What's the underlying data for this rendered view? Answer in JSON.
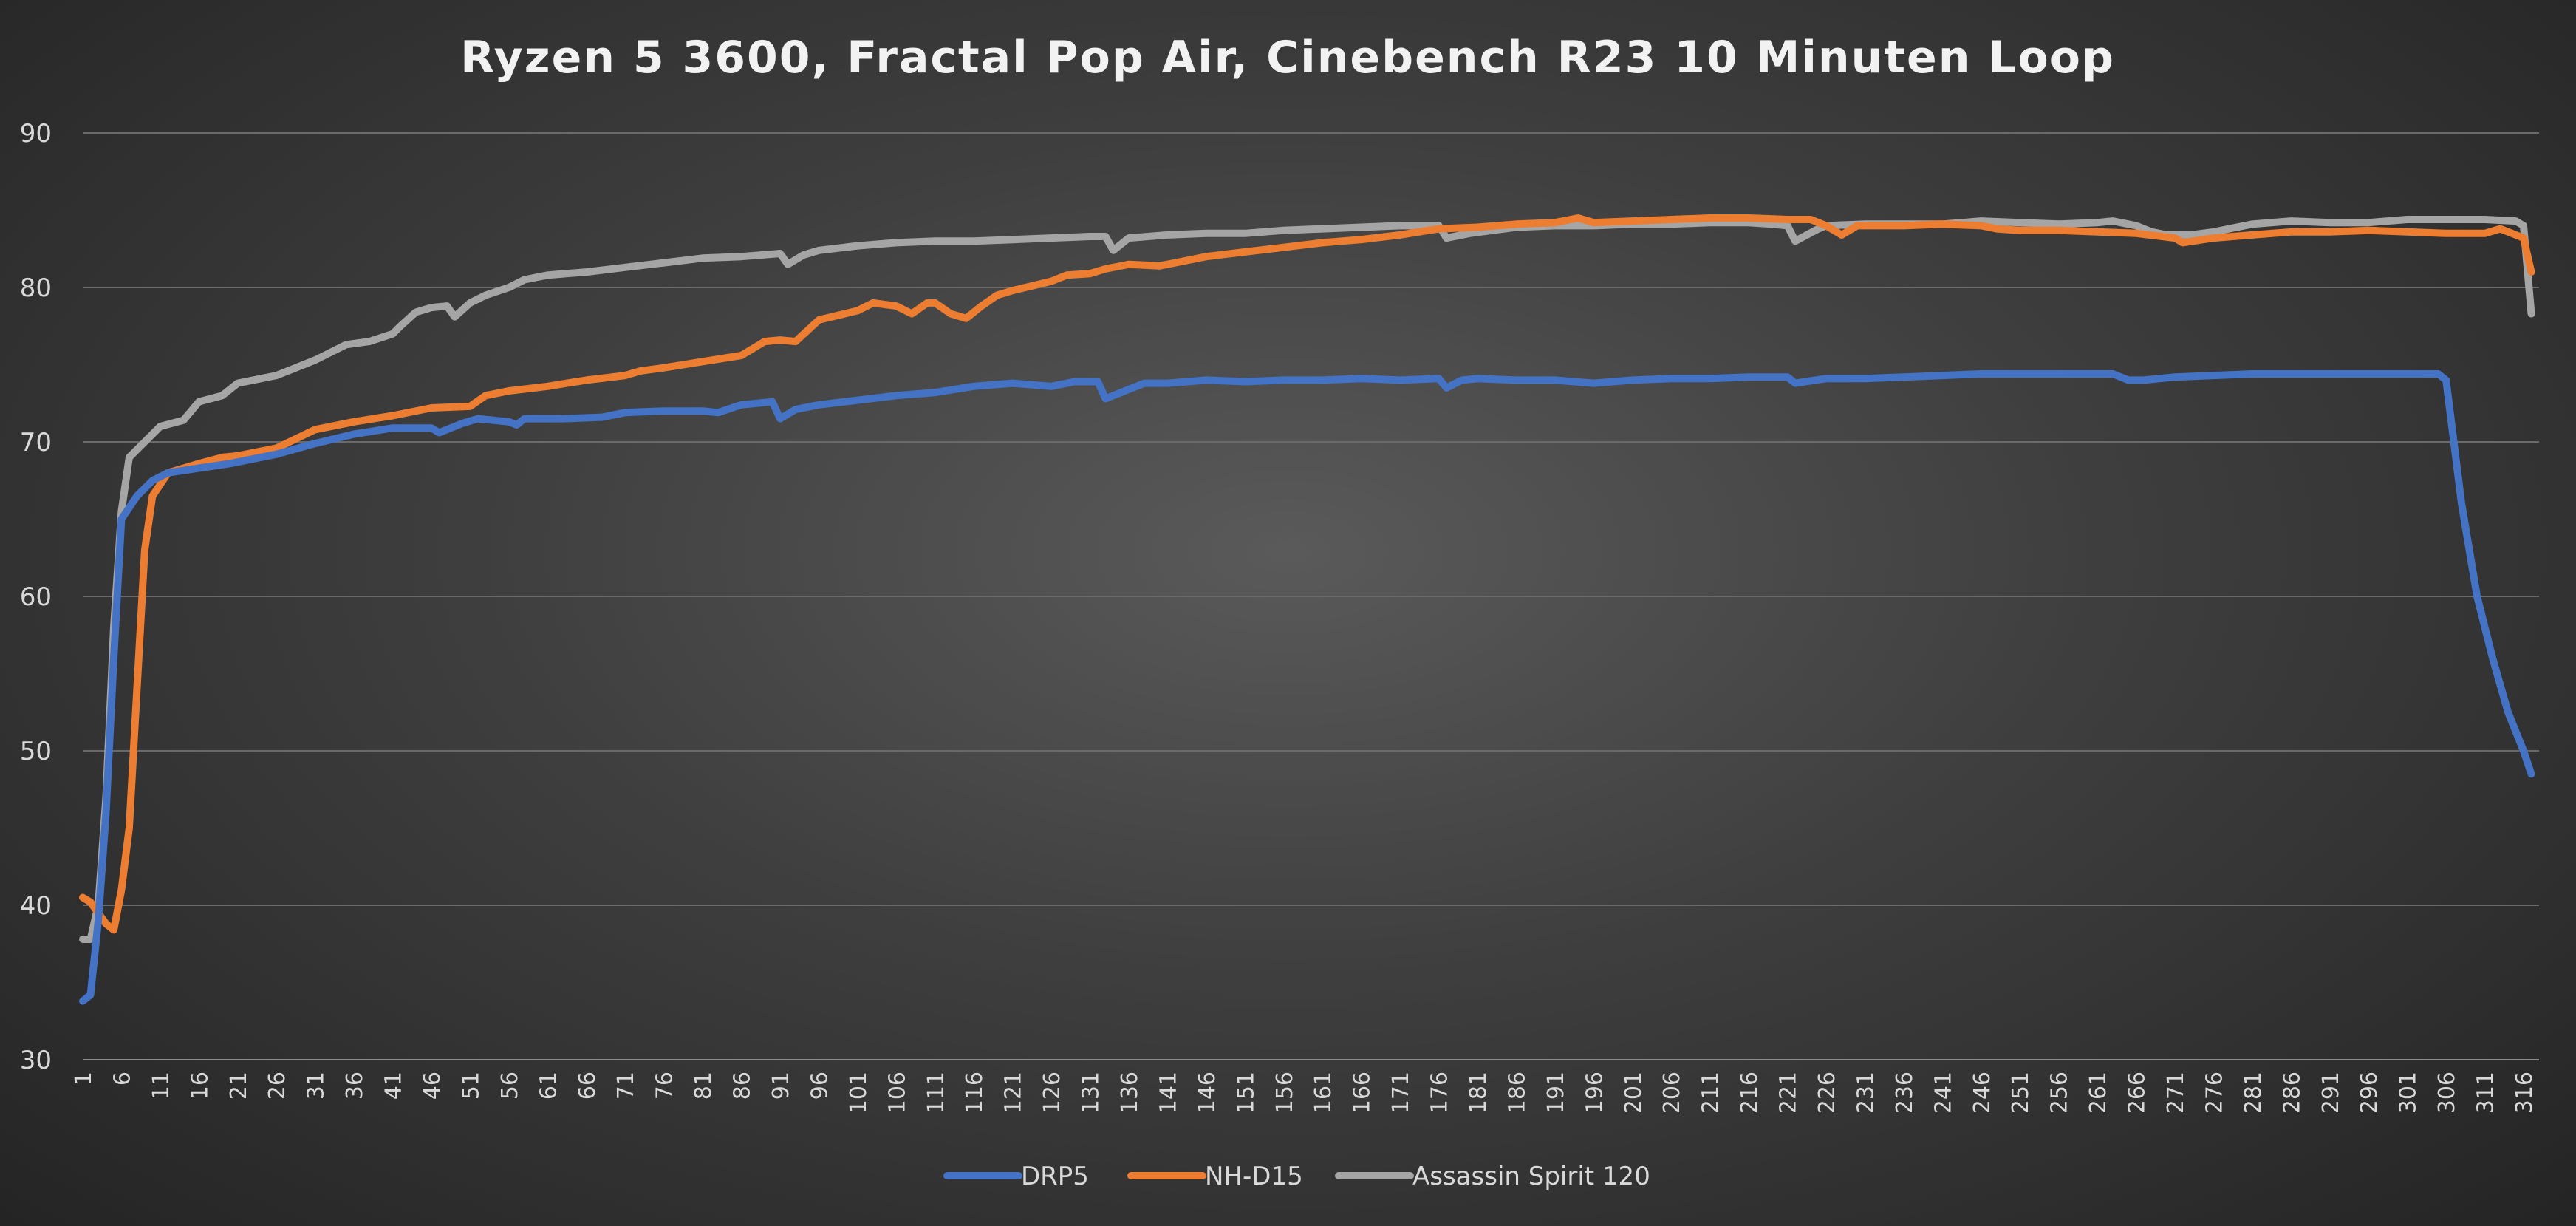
{
  "chart_data": {
    "type": "line",
    "title": "Ryzen 5 3600, Fractal Pop Air, Cinebench R23 10 Minuten Loop",
    "xlabel": "",
    "ylabel": "",
    "ylim": [
      30,
      90
    ],
    "yticks": [
      "30",
      "40",
      "50",
      "60",
      "70",
      "80",
      "90"
    ],
    "x_range": [
      1,
      318
    ],
    "xtick_values": [
      1,
      6,
      11,
      16,
      21,
      26,
      31,
      36,
      41,
      46,
      51,
      56,
      61,
      66,
      71,
      76,
      81,
      86,
      91,
      96,
      101,
      106,
      111,
      116,
      121,
      126,
      131,
      136,
      141,
      146,
      151,
      156,
      161,
      166,
      171,
      176,
      181,
      186,
      191,
      196,
      201,
      206,
      211,
      216,
      221,
      226,
      231,
      236,
      241,
      246,
      251,
      256,
      261,
      266,
      271,
      276,
      281,
      286,
      291,
      296,
      301,
      306,
      311,
      316
    ],
    "grid": true,
    "legend_position": "bottom",
    "series": [
      {
        "name": "DRP5",
        "color": "#4472c4",
        "points": [
          [
            1,
            33.8
          ],
          [
            2,
            34.2
          ],
          [
            3,
            39
          ],
          [
            4,
            46
          ],
          [
            5,
            56
          ],
          [
            6,
            65
          ],
          [
            8,
            66.5
          ],
          [
            10,
            67.5
          ],
          [
            12,
            68
          ],
          [
            16,
            68.3
          ],
          [
            20,
            68.6
          ],
          [
            26,
            69.2
          ],
          [
            31,
            69.9
          ],
          [
            36,
            70.5
          ],
          [
            41,
            70.9
          ],
          [
            46,
            70.9
          ],
          [
            47,
            70.6
          ],
          [
            50,
            71.2
          ],
          [
            52,
            71.5
          ],
          [
            56,
            71.3
          ],
          [
            57,
            71.1
          ],
          [
            58,
            71.5
          ],
          [
            63,
            71.5
          ],
          [
            68,
            71.6
          ],
          [
            71,
            71.9
          ],
          [
            76,
            72
          ],
          [
            81,
            72
          ],
          [
            83,
            71.9
          ],
          [
            86,
            72.4
          ],
          [
            88,
            72.5
          ],
          [
            90,
            72.6
          ],
          [
            91,
            71.5
          ],
          [
            93,
            72.1
          ],
          [
            96,
            72.4
          ],
          [
            101,
            72.7
          ],
          [
            106,
            73
          ],
          [
            111,
            73.2
          ],
          [
            116,
            73.6
          ],
          [
            121,
            73.8
          ],
          [
            126,
            73.6
          ],
          [
            129,
            73.9
          ],
          [
            132,
            73.9
          ],
          [
            133,
            72.8
          ],
          [
            135,
            73.2
          ],
          [
            138,
            73.8
          ],
          [
            141,
            73.8
          ],
          [
            146,
            74
          ],
          [
            151,
            73.9
          ],
          [
            156,
            74
          ],
          [
            161,
            74
          ],
          [
            166,
            74.1
          ],
          [
            171,
            74
          ],
          [
            176,
            74.1
          ],
          [
            177,
            73.5
          ],
          [
            179,
            74
          ],
          [
            181,
            74.1
          ],
          [
            186,
            74
          ],
          [
            191,
            74
          ],
          [
            196,
            73.8
          ],
          [
            201,
            74
          ],
          [
            206,
            74.1
          ],
          [
            211,
            74.1
          ],
          [
            216,
            74.2
          ],
          [
            221,
            74.2
          ],
          [
            222,
            73.8
          ],
          [
            226,
            74.1
          ],
          [
            231,
            74.1
          ],
          [
            236,
            74.2
          ],
          [
            241,
            74.3
          ],
          [
            246,
            74.4
          ],
          [
            251,
            74.4
          ],
          [
            256,
            74.4
          ],
          [
            261,
            74.4
          ],
          [
            263,
            74.4
          ],
          [
            265,
            74
          ],
          [
            267,
            74
          ],
          [
            271,
            74.2
          ],
          [
            276,
            74.3
          ],
          [
            281,
            74.4
          ],
          [
            286,
            74.4
          ],
          [
            291,
            74.4
          ],
          [
            296,
            74.4
          ],
          [
            301,
            74.4
          ],
          [
            305,
            74.4
          ],
          [
            306,
            74
          ],
          [
            307,
            70
          ],
          [
            308,
            66
          ],
          [
            310,
            60
          ],
          [
            312,
            56
          ],
          [
            314,
            52.5
          ],
          [
            316,
            50
          ],
          [
            317,
            48.5
          ]
        ]
      },
      {
        "name": "NH-D15",
        "color": "#ed7d31",
        "points": [
          [
            1,
            40.5
          ],
          [
            2,
            40.2
          ],
          [
            3,
            39.5
          ],
          [
            4,
            38.8
          ],
          [
            5,
            38.4
          ],
          [
            6,
            41
          ],
          [
            7,
            45
          ],
          [
            8,
            54
          ],
          [
            9,
            63
          ],
          [
            10,
            66.5
          ],
          [
            12,
            68
          ],
          [
            14,
            68.3
          ],
          [
            16,
            68.6
          ],
          [
            19,
            69
          ],
          [
            21,
            69.1
          ],
          [
            26,
            69.6
          ],
          [
            31,
            70.8
          ],
          [
            36,
            71.3
          ],
          [
            41,
            71.7
          ],
          [
            46,
            72.2
          ],
          [
            51,
            72.3
          ],
          [
            53,
            73
          ],
          [
            56,
            73.3
          ],
          [
            61,
            73.6
          ],
          [
            66,
            74
          ],
          [
            71,
            74.3
          ],
          [
            73,
            74.6
          ],
          [
            76,
            74.8
          ],
          [
            81,
            75.2
          ],
          [
            86,
            75.6
          ],
          [
            89,
            76.5
          ],
          [
            91,
            76.6
          ],
          [
            93,
            76.5
          ],
          [
            96,
            77.9
          ],
          [
            101,
            78.5
          ],
          [
            103,
            79
          ],
          [
            106,
            78.8
          ],
          [
            108,
            78.3
          ],
          [
            110,
            79
          ],
          [
            111,
            79
          ],
          [
            113,
            78.3
          ],
          [
            115,
            78
          ],
          [
            117,
            78.8
          ],
          [
            119,
            79.5
          ],
          [
            121,
            79.8
          ],
          [
            126,
            80.4
          ],
          [
            128,
            80.8
          ],
          [
            131,
            80.9
          ],
          [
            133,
            81.2
          ],
          [
            136,
            81.5
          ],
          [
            140,
            81.4
          ],
          [
            142,
            81.6
          ],
          [
            146,
            82
          ],
          [
            151,
            82.3
          ],
          [
            156,
            82.6
          ],
          [
            161,
            82.9
          ],
          [
            166,
            83.1
          ],
          [
            171,
            83.4
          ],
          [
            176,
            83.8
          ],
          [
            181,
            83.9
          ],
          [
            186,
            84.1
          ],
          [
            191,
            84.2
          ],
          [
            194,
            84.5
          ],
          [
            196,
            84.2
          ],
          [
            201,
            84.3
          ],
          [
            206,
            84.4
          ],
          [
            211,
            84.5
          ],
          [
            216,
            84.5
          ],
          [
            221,
            84.4
          ],
          [
            224,
            84.4
          ],
          [
            226,
            84
          ],
          [
            228,
            83.4
          ],
          [
            230,
            84
          ],
          [
            236,
            84
          ],
          [
            241,
            84.1
          ],
          [
            246,
            84
          ],
          [
            248,
            83.8
          ],
          [
            251,
            83.7
          ],
          [
            256,
            83.7
          ],
          [
            261,
            83.6
          ],
          [
            266,
            83.5
          ],
          [
            271,
            83.2
          ],
          [
            272,
            82.9
          ],
          [
            276,
            83.2
          ],
          [
            281,
            83.4
          ],
          [
            286,
            83.6
          ],
          [
            291,
            83.6
          ],
          [
            296,
            83.7
          ],
          [
            301,
            83.6
          ],
          [
            306,
            83.5
          ],
          [
            311,
            83.5
          ],
          [
            313,
            83.8
          ],
          [
            315,
            83.4
          ],
          [
            316,
            83.2
          ],
          [
            317,
            81
          ]
        ]
      },
      {
        "name": "Assassin Spirit 120",
        "color": "#a5a5a5",
        "points": [
          [
            1,
            37.8
          ],
          [
            2,
            37.8
          ],
          [
            3,
            40
          ],
          [
            4,
            47
          ],
          [
            5,
            58
          ],
          [
            6,
            65.5
          ],
          [
            7,
            69
          ],
          [
            9,
            70
          ],
          [
            11,
            71
          ],
          [
            14,
            71.4
          ],
          [
            16,
            72.6
          ],
          [
            19,
            73
          ],
          [
            21,
            73.8
          ],
          [
            26,
            74.3
          ],
          [
            28,
            74.7
          ],
          [
            31,
            75.3
          ],
          [
            33,
            75.8
          ],
          [
            35,
            76.3
          ],
          [
            38,
            76.5
          ],
          [
            41,
            77
          ],
          [
            42,
            77.5
          ],
          [
            44,
            78.4
          ],
          [
            46,
            78.7
          ],
          [
            48,
            78.8
          ],
          [
            49,
            78.1
          ],
          [
            51,
            79
          ],
          [
            53,
            79.5
          ],
          [
            56,
            80
          ],
          [
            58,
            80.5
          ],
          [
            61,
            80.8
          ],
          [
            66,
            81
          ],
          [
            71,
            81.3
          ],
          [
            76,
            81.6
          ],
          [
            81,
            81.9
          ],
          [
            86,
            82
          ],
          [
            91,
            82.2
          ],
          [
            92,
            81.5
          ],
          [
            94,
            82.1
          ],
          [
            96,
            82.4
          ],
          [
            101,
            82.7
          ],
          [
            106,
            82.9
          ],
          [
            111,
            83
          ],
          [
            116,
            83
          ],
          [
            121,
            83.1
          ],
          [
            126,
            83.2
          ],
          [
            131,
            83.3
          ],
          [
            133,
            83.3
          ],
          [
            134,
            82.4
          ],
          [
            136,
            83.2
          ],
          [
            141,
            83.4
          ],
          [
            146,
            83.5
          ],
          [
            151,
            83.5
          ],
          [
            156,
            83.7
          ],
          [
            161,
            83.8
          ],
          [
            166,
            83.9
          ],
          [
            171,
            84
          ],
          [
            176,
            84
          ],
          [
            177,
            83.2
          ],
          [
            180,
            83.5
          ],
          [
            183,
            83.7
          ],
          [
            186,
            83.9
          ],
          [
            191,
            84
          ],
          [
            196,
            84
          ],
          [
            201,
            84.1
          ],
          [
            206,
            84.1
          ],
          [
            211,
            84.2
          ],
          [
            216,
            84.2
          ],
          [
            219,
            84.1
          ],
          [
            221,
            84
          ],
          [
            222,
            83
          ],
          [
            225,
            83.8
          ],
          [
            226,
            84
          ],
          [
            231,
            84.1
          ],
          [
            236,
            84.1
          ],
          [
            241,
            84.1
          ],
          [
            246,
            84.3
          ],
          [
            251,
            84.2
          ],
          [
            256,
            84.1
          ],
          [
            261,
            84.2
          ],
          [
            263,
            84.3
          ],
          [
            266,
            84
          ],
          [
            268,
            83.6
          ],
          [
            270,
            83.4
          ],
          [
            273,
            83.4
          ],
          [
            276,
            83.6
          ],
          [
            281,
            84.1
          ],
          [
            286,
            84.3
          ],
          [
            291,
            84.2
          ],
          [
            296,
            84.2
          ],
          [
            301,
            84.4
          ],
          [
            306,
            84.4
          ],
          [
            311,
            84.4
          ],
          [
            315,
            84.3
          ],
          [
            316,
            84
          ],
          [
            317,
            78.3
          ]
        ]
      }
    ]
  }
}
